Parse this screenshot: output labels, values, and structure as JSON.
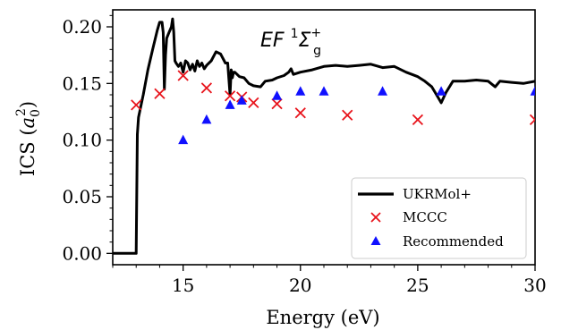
{
  "chart_data": {
    "type": "line",
    "xlabel": "Energy (eV)",
    "ylabel_main": "ICS (",
    "ylabel_sym": "a",
    "ylabel_sub": "0",
    "ylabel_sup": "2",
    "ylabel_end": ")",
    "xlim": [
      12,
      30
    ],
    "ylim": [
      -0.01,
      0.215
    ],
    "xticks": [
      15,
      20,
      25,
      30
    ],
    "yticks": [
      0.0,
      0.05,
      0.1,
      0.15,
      0.2
    ],
    "ytick_labels": [
      "0.00",
      "0.05",
      "0.10",
      "0.15",
      "0.20"
    ],
    "annotation": {
      "base": "EF ",
      "pre_sup": "1",
      "sym": "Σ",
      "sub": "g",
      "sup": "+"
    },
    "legend_position": "lower-right",
    "series": [
      {
        "name": "UKRMol+",
        "kind": "line",
        "color": "#000000",
        "x": [
          12.0,
          12.9,
          13.0,
          13.05,
          13.1,
          13.3,
          13.5,
          13.7,
          13.9,
          14.0,
          14.1,
          14.15,
          14.2,
          14.25,
          14.3,
          14.4,
          14.5,
          14.55,
          14.6,
          14.65,
          14.7,
          14.8,
          14.9,
          15.0,
          15.1,
          15.2,
          15.3,
          15.4,
          15.5,
          15.6,
          15.7,
          15.8,
          15.9,
          16.0,
          16.2,
          16.4,
          16.6,
          16.8,
          16.9,
          17.0,
          17.05,
          17.1,
          17.15,
          17.2,
          17.4,
          17.6,
          17.8,
          18.0,
          18.3,
          18.5,
          18.8,
          19.0,
          19.3,
          19.5,
          19.6,
          19.7,
          20.0,
          20.5,
          21.0,
          21.5,
          22.0,
          22.5,
          23.0,
          23.5,
          24.0,
          24.5,
          25.0,
          25.3,
          25.6,
          25.8,
          26.0,
          26.2,
          26.5,
          27.0,
          27.5,
          28.0,
          28.3,
          28.5,
          29.0,
          29.5,
          30.0
        ],
        "y": [
          0.0,
          0.0,
          0.0,
          0.105,
          0.12,
          0.14,
          0.162,
          0.18,
          0.197,
          0.204,
          0.204,
          0.195,
          0.145,
          0.175,
          0.19,
          0.195,
          0.2,
          0.207,
          0.195,
          0.17,
          0.168,
          0.165,
          0.168,
          0.16,
          0.17,
          0.168,
          0.162,
          0.167,
          0.161,
          0.17,
          0.165,
          0.168,
          0.163,
          0.166,
          0.17,
          0.178,
          0.176,
          0.168,
          0.168,
          0.14,
          0.162,
          0.155,
          0.16,
          0.16,
          0.156,
          0.155,
          0.15,
          0.148,
          0.147,
          0.152,
          0.153,
          0.155,
          0.157,
          0.16,
          0.163,
          0.158,
          0.16,
          0.162,
          0.165,
          0.166,
          0.165,
          0.166,
          0.167,
          0.164,
          0.165,
          0.16,
          0.156,
          0.152,
          0.147,
          0.14,
          0.133,
          0.142,
          0.152,
          0.152,
          0.153,
          0.152,
          0.147,
          0.152,
          0.151,
          0.15,
          0.152
        ]
      },
      {
        "name": "MCCC",
        "kind": "x-marker",
        "color": "#e8131b",
        "x": [
          13,
          14,
          15,
          16,
          17,
          17.5,
          18,
          19,
          20,
          22,
          25,
          30
        ],
        "y": [
          0.131,
          0.141,
          0.157,
          0.146,
          0.139,
          0.138,
          0.133,
          0.132,
          0.124,
          0.122,
          0.118,
          0.118
        ]
      },
      {
        "name": "Recommended",
        "kind": "triangle-marker",
        "color": "#1010ff",
        "x": [
          15,
          16,
          17,
          17.5,
          19,
          20,
          21,
          23.5,
          26,
          30
        ],
        "y": [
          0.1,
          0.118,
          0.131,
          0.135,
          0.139,
          0.143,
          0.143,
          0.143,
          0.143,
          0.143
        ]
      }
    ]
  }
}
